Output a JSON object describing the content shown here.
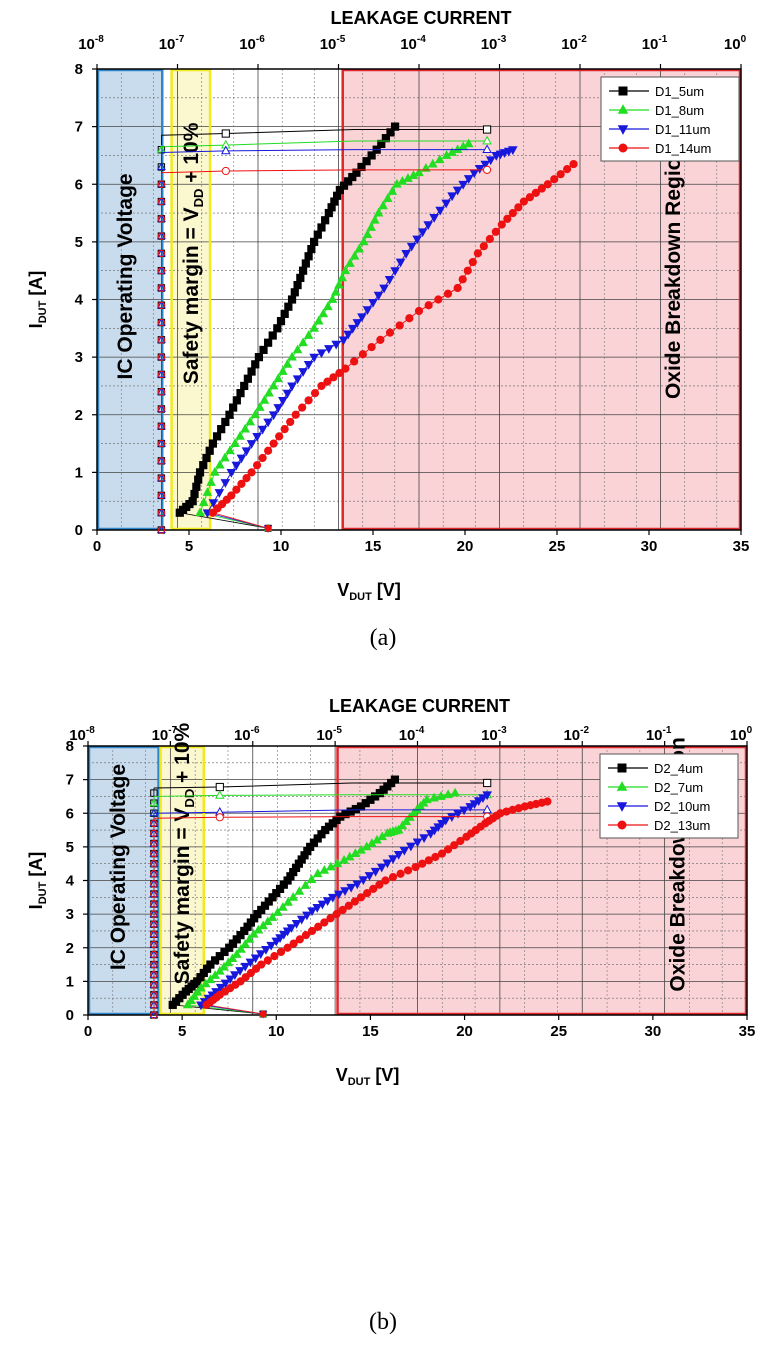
{
  "chart_data": [
    {
      "panel": "(a)",
      "type": "scatter",
      "top_axis_title": "LEAKAGE CURRENT",
      "top_ticks": [
        {
          "b": "10",
          "e": "-8"
        },
        {
          "b": "10",
          "e": "-7"
        },
        {
          "b": "10",
          "e": "-6"
        },
        {
          "b": "10",
          "e": "-5"
        },
        {
          "b": "10",
          "e": "-4"
        },
        {
          "b": "10",
          "e": "-3"
        },
        {
          "b": "10",
          "e": "-2"
        },
        {
          "b": "10",
          "e": "-1"
        },
        {
          "b": "10",
          "e": "0"
        }
      ],
      "xlim": [
        0,
        35
      ],
      "ylim": [
        0,
        8
      ],
      "xticks": [
        0,
        5,
        10,
        15,
        20,
        25,
        30,
        35
      ],
      "yticks": [
        0,
        1,
        2,
        3,
        4,
        5,
        6,
        7,
        8
      ],
      "xlabel": {
        "main": "V",
        "sub": "DUT",
        "unit": " [V]"
      },
      "ylabel": {
        "main": "I",
        "sub": "DUT",
        "unit": " [A]"
      },
      "regions": [
        {
          "label": "IC Operating Voltage",
          "x0": 0,
          "x1": 3.6,
          "fill": "#c9dcee",
          "stroke": "#2f86c8"
        },
        {
          "label_pre": "Safety margin = V",
          "label_sub": "DD",
          "label_post": " + 10%",
          "x0": 4.0,
          "x1": 6.2,
          "fill": "#fbf7cf",
          "stroke": "#f2ea1d"
        },
        {
          "label": "Oxide Breakdown Region",
          "x0": 13.3,
          "x1": 35,
          "fill": "#f9d3d6",
          "stroke": "#e0262d"
        }
      ],
      "legend_position": "top-right",
      "series": [
        {
          "name": "D1_5um",
          "color": "#000000",
          "marker": "square",
          "iv": [
            [
              4.5,
              0.3
            ],
            [
              5.2,
              0.5
            ],
            [
              5.6,
              1.0
            ],
            [
              6.3,
              1.5
            ],
            [
              7.2,
              2.0
            ],
            [
              8.0,
              2.5
            ],
            [
              8.8,
              3.0
            ],
            [
              9.8,
              3.5
            ],
            [
              10.6,
              4.0
            ],
            [
              11.2,
              4.5
            ],
            [
              11.8,
              5.0
            ],
            [
              12.6,
              5.5
            ],
            [
              13.2,
              5.9
            ],
            [
              14.1,
              6.2
            ],
            [
              15.2,
              6.6
            ],
            [
              16.2,
              7.0
            ]
          ],
          "leak_top": 6.85,
          "leak_end": 6.95,
          "leak_x": 5.0
        },
        {
          "name": "D1_8um",
          "color": "#22dd22",
          "marker": "triangle-up",
          "iv": [
            [
              5.6,
              0.3
            ],
            [
              6.4,
              1.0
            ],
            [
              7.5,
              1.5
            ],
            [
              8.6,
              2.0
            ],
            [
              9.6,
              2.5
            ],
            [
              10.6,
              3.0
            ],
            [
              11.8,
              3.5
            ],
            [
              12.8,
              4.0
            ],
            [
              13.5,
              4.5
            ],
            [
              14.5,
              5.0
            ],
            [
              15.3,
              5.5
            ],
            [
              16.3,
              6.0
            ],
            [
              17.5,
              6.2
            ],
            [
              19.0,
              6.5
            ],
            [
              20.2,
              6.7
            ]
          ],
          "leak_top": 6.65,
          "leak_end": 6.75,
          "leak_x": 5.0
        },
        {
          "name": "D1_11um",
          "color": "#1818dd",
          "marker": "triangle-down",
          "iv": [
            [
              6.0,
              0.3
            ],
            [
              7.3,
              1.0
            ],
            [
              8.4,
              1.5
            ],
            [
              9.6,
              2.0
            ],
            [
              10.6,
              2.5
            ],
            [
              11.8,
              3.0
            ],
            [
              13.4,
              3.3
            ],
            [
              14.4,
              3.7
            ],
            [
              15.6,
              4.2
            ],
            [
              16.8,
              4.8
            ],
            [
              18.0,
              5.3
            ],
            [
              19.3,
              5.8
            ],
            [
              20.5,
              6.2
            ],
            [
              21.7,
              6.5
            ],
            [
              22.6,
              6.6
            ]
          ],
          "leak_top": 6.55,
          "leak_end": 6.6,
          "leak_x": 5.0
        },
        {
          "name": "D1_14um",
          "color": "#ee1111",
          "marker": "circle",
          "iv": [
            [
              6.3,
              0.3
            ],
            [
              7.3,
              0.6
            ],
            [
              8.4,
              1.0
            ],
            [
              9.6,
              1.5
            ],
            [
              10.8,
              2.0
            ],
            [
              12.2,
              2.5
            ],
            [
              13.5,
              2.8
            ],
            [
              15.4,
              3.3
            ],
            [
              17.5,
              3.8
            ],
            [
              19.6,
              4.2
            ],
            [
              20.7,
              4.8
            ],
            [
              22.0,
              5.3
            ],
            [
              23.2,
              5.7
            ],
            [
              24.5,
              6.0
            ],
            [
              25.9,
              6.35
            ]
          ],
          "leak_top": 6.2,
          "leak_end": 6.25,
          "leak_x": 5.0
        }
      ],
      "caption": "(a)"
    },
    {
      "panel": "(b)",
      "type": "scatter",
      "top_axis_title": "LEAKAGE CURRENT",
      "top_ticks": [
        {
          "b": "10",
          "e": "-8"
        },
        {
          "b": "10",
          "e": "-7"
        },
        {
          "b": "10",
          "e": "-6"
        },
        {
          "b": "10",
          "e": "-5"
        },
        {
          "b": "10",
          "e": "-4"
        },
        {
          "b": "10",
          "e": "-3"
        },
        {
          "b": "10",
          "e": "-2"
        },
        {
          "b": "10",
          "e": "-1"
        },
        {
          "b": "10",
          "e": "0"
        }
      ],
      "xlim": [
        0,
        35
      ],
      "ylim": [
        0,
        8
      ],
      "xticks": [
        0,
        5,
        10,
        15,
        20,
        25,
        30,
        35
      ],
      "yticks": [
        0,
        1,
        2,
        3,
        4,
        5,
        6,
        7,
        8
      ],
      "xlabel": {
        "main": "V",
        "sub": "DUT",
        "unit": " [V]"
      },
      "ylabel": {
        "main": "I",
        "sub": "DUT",
        "unit": " [A]"
      },
      "regions": [
        {
          "label": "IC Operating Voltage",
          "x0": 0,
          "x1": 3.8,
          "fill": "#c9dcee",
          "stroke": "#2f86c8"
        },
        {
          "label_pre": "Safety margin = V",
          "label_sub": "DD",
          "label_post": " + 10%",
          "x0": 3.8,
          "x1": 6.2,
          "fill": "#fbf7cf",
          "stroke": "#f2ea1d"
        },
        {
          "label": "Oxide Breakdown Region",
          "x0": 13.2,
          "x1": 35,
          "fill": "#f9d3d6",
          "stroke": "#e0262d"
        }
      ],
      "legend_position": "top-right",
      "series": [
        {
          "name": "D2_4um",
          "color": "#000000",
          "marker": "square",
          "iv": [
            [
              4.5,
              0.3
            ],
            [
              5.2,
              0.7
            ],
            [
              5.8,
              1.0
            ],
            [
              6.5,
              1.5
            ],
            [
              7.5,
              2.0
            ],
            [
              8.3,
              2.5
            ],
            [
              9.0,
              3.0
            ],
            [
              9.8,
              3.5
            ],
            [
              10.6,
              4.0
            ],
            [
              11.2,
              4.5
            ],
            [
              11.8,
              5.0
            ],
            [
              12.6,
              5.5
            ],
            [
              13.4,
              5.9
            ],
            [
              14.5,
              6.2
            ],
            [
              15.5,
              6.6
            ],
            [
              16.3,
              7.0
            ]
          ],
          "leak_top": 6.75,
          "leak_end": 6.9,
          "leak_x": 5.0
        },
        {
          "name": "D2_7um",
          "color": "#22dd22",
          "marker": "triangle-up",
          "iv": [
            [
              5.3,
              0.3
            ],
            [
              6.0,
              0.8
            ],
            [
              7.0,
              1.3
            ],
            [
              7.9,
              1.8
            ],
            [
              8.8,
              2.4
            ],
            [
              9.8,
              2.9
            ],
            [
              10.9,
              3.5
            ],
            [
              12.2,
              4.2
            ],
            [
              13.6,
              4.6
            ],
            [
              14.8,
              5.0
            ],
            [
              15.9,
              5.4
            ],
            [
              16.5,
              5.5
            ],
            [
              17.3,
              6.0
            ],
            [
              18.0,
              6.4
            ],
            [
              19.5,
              6.6
            ]
          ],
          "leak_top": 6.5,
          "leak_end": 6.55,
          "leak_x": 5.0
        },
        {
          "name": "D2_10um",
          "color": "#1818dd",
          "marker": "triangle-down",
          "iv": [
            [
              6.0,
              0.3
            ],
            [
              6.8,
              0.7
            ],
            [
              7.8,
              1.2
            ],
            [
              8.9,
              1.7
            ],
            [
              10.0,
              2.2
            ],
            [
              10.8,
              2.6
            ],
            [
              11.9,
              3.1
            ],
            [
              13.0,
              3.5
            ],
            [
              14.3,
              3.9
            ],
            [
              15.6,
              4.4
            ],
            [
              16.8,
              4.9
            ],
            [
              18.2,
              5.4
            ],
            [
              19.0,
              5.8
            ],
            [
              20.3,
              6.2
            ],
            [
              21.2,
              6.55
            ]
          ],
          "leak_top": 6.0,
          "leak_end": 6.1,
          "leak_x": 5.0
        },
        {
          "name": "D2_13um",
          "color": "#ee1111",
          "marker": "circle",
          "iv": [
            [
              6.3,
              0.3
            ],
            [
              7.0,
              0.6
            ],
            [
              8.1,
              1.0
            ],
            [
              9.2,
              1.5
            ],
            [
              10.6,
              2.0
            ],
            [
              11.9,
              2.5
            ],
            [
              13.2,
              3.0
            ],
            [
              14.5,
              3.5
            ],
            [
              15.8,
              4.0
            ],
            [
              17.4,
              4.4
            ],
            [
              18.8,
              4.8
            ],
            [
              20.1,
              5.3
            ],
            [
              21.1,
              5.7
            ],
            [
              21.9,
              6.0
            ],
            [
              23.2,
              6.2
            ],
            [
              24.4,
              6.35
            ]
          ],
          "leak_top": 5.85,
          "leak_end": 5.9,
          "leak_x": 5.0
        }
      ],
      "caption": "(b)"
    }
  ]
}
